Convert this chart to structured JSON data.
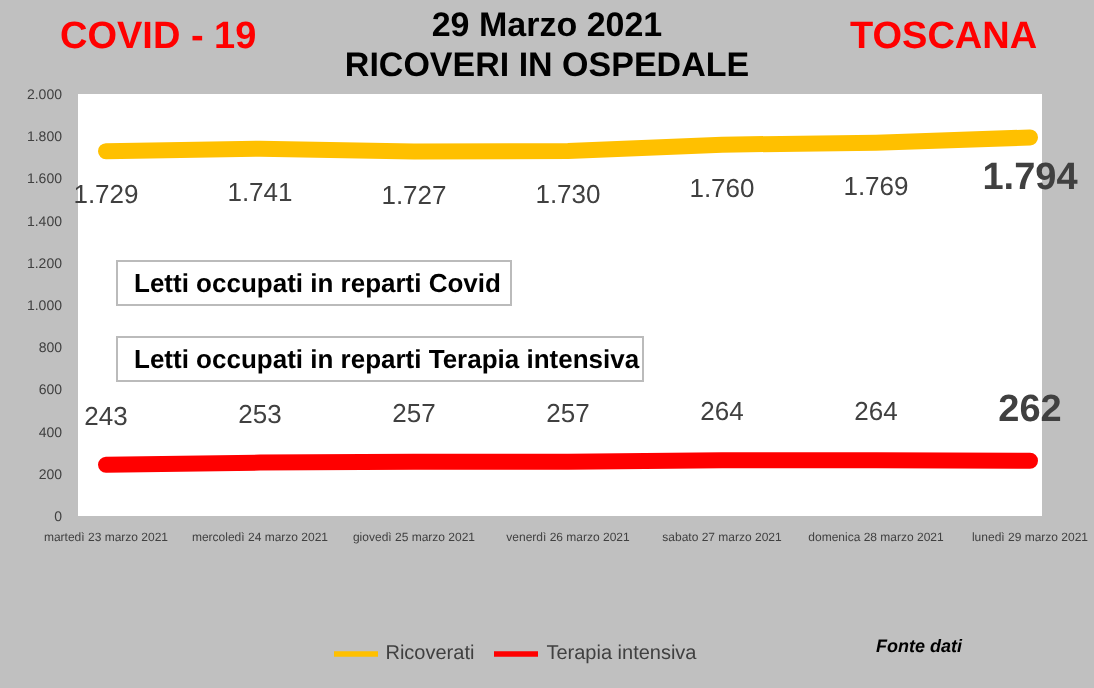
{
  "chart_data": {
    "type": "line",
    "title": "29 Marzo 2021",
    "subtitle": "RICOVERI IN OSPEDALE",
    "categories": [
      "martedì 23 marzo 2021",
      "mercoledì 24 marzo 2021",
      "giovedì 25 marzo 2021",
      "venerdì 26 marzo 2021",
      "sabato 27 marzo 2021",
      "domenica 28 marzo 2021",
      "lunedì 29 marzo 2021"
    ],
    "series": [
      {
        "name": "Ricoverati",
        "color": "#ffc000",
        "values": [
          1729,
          1741,
          1727,
          1730,
          1760,
          1769,
          1794
        ],
        "value_labels": [
          "1.729",
          "1.741",
          "1.727",
          "1.730",
          "1.760",
          "1.769",
          "1.794"
        ]
      },
      {
        "name": "Terapia intensiva",
        "color": "#ff0000",
        "values": [
          243,
          253,
          257,
          257,
          264,
          264,
          262
        ],
        "value_labels": [
          "243",
          "253",
          "257",
          "257",
          "264",
          "264",
          "262"
        ]
      }
    ],
    "ylim": [
      0,
      2000
    ],
    "yticks": [
      {
        "value": 0,
        "label": "0"
      },
      {
        "value": 200,
        "label": "200"
      },
      {
        "value": 400,
        "label": "400"
      },
      {
        "value": 600,
        "label": "600"
      },
      {
        "value": 800,
        "label": "800"
      },
      {
        "value": 1000,
        "label": "1.000"
      },
      {
        "value": 1200,
        "label": "1.200"
      },
      {
        "value": 1400,
        "label": "1.400"
      },
      {
        "value": 1600,
        "label": "1.600"
      },
      {
        "value": 1800,
        "label": "1.800"
      },
      {
        "value": 2000,
        "label": "2.000"
      }
    ],
    "grid": false,
    "legend": "bottom",
    "marker": "none",
    "line_style": "solid",
    "annotations": [
      "COVID - 19",
      "TOSCANA",
      "Letti occupati in reparti Covid",
      "Letti occupati in reparti Terapia intensiva",
      "Fonte dati"
    ]
  }
}
